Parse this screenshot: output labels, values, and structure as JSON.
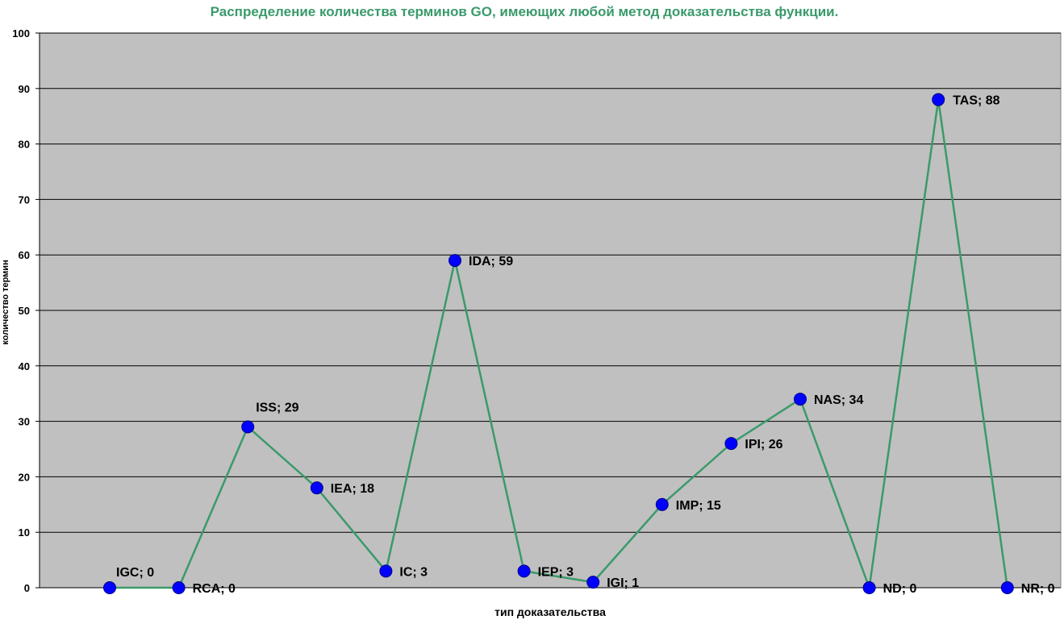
{
  "chart_data": {
    "type": "line",
    "title": "Распределение количества терминов GO, имеющих любой метод доказательства функции.",
    "xlabel": "тип доказательства",
    "ylabel": "количество термин",
    "ylim": [
      0,
      100
    ],
    "ytick_step": 10,
    "grid": true,
    "legend": "none",
    "categories": [
      "IGC",
      "RCA",
      "ISS",
      "IEA",
      "IC",
      "IDA",
      "IEP",
      "IGI",
      "IMP",
      "IPI",
      "NAS",
      "ND",
      "TAS",
      "NR"
    ],
    "series": [
      {
        "values": [
          0,
          0,
          29,
          18,
          3,
          59,
          3,
          1,
          15,
          26,
          34,
          0,
          88,
          0
        ]
      }
    ],
    "data_labels": [
      "IGC; 0",
      "RCA; 0",
      "ISS; 29",
      "IEA; 18",
      "IC; 3",
      "IDA; 59",
      "IEP; 3",
      "IGI; 1",
      "IMP; 15",
      "IPI; 26",
      "NAS; 34",
      "ND; 0",
      "TAS; 88",
      "NR; 0"
    ],
    "colors": {
      "plot_background": "#c0c0c0",
      "line": "#3a9a6a",
      "marker": "#0000ff",
      "marker_stroke": "#00008b",
      "title": "#3a9a6a",
      "grid": "#000000"
    }
  }
}
